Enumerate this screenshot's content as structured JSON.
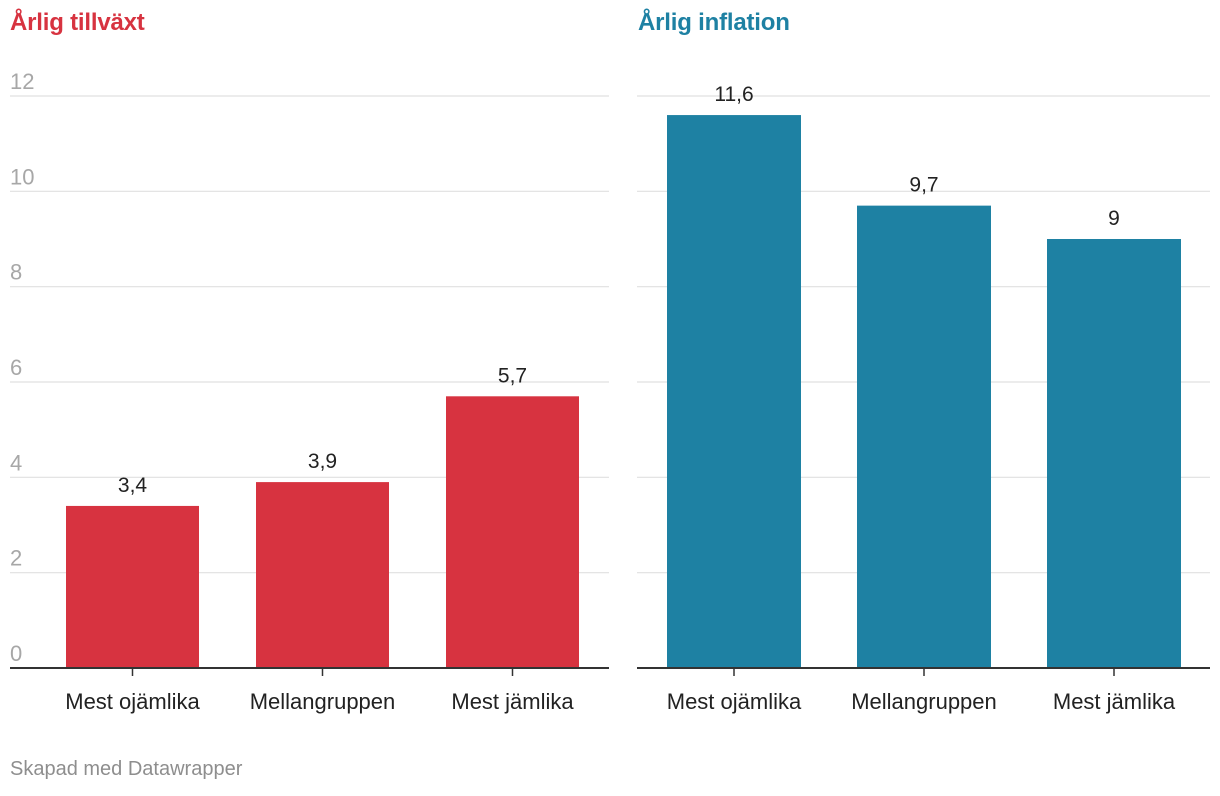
{
  "chart_data": [
    {
      "type": "bar",
      "title": "Årlig tillväxt",
      "color": "#d73340",
      "categories": [
        "Mest ojämlika",
        "Mellangruppen",
        "Mest jämlika"
      ],
      "values": [
        3.4,
        3.9,
        5.7
      ],
      "value_labels": [
        "3,4",
        "3,9",
        "5,7"
      ],
      "ylim": [
        0,
        12
      ],
      "yticks": [
        0,
        2,
        4,
        6,
        8,
        10,
        12
      ],
      "ytick_labels": [
        "0",
        "2",
        "4",
        "6",
        "8",
        "10",
        "12"
      ],
      "show_ytick_labels": true,
      "grid": true
    },
    {
      "type": "bar",
      "title": "Årlig inflation",
      "color": "#1e81a3",
      "categories": [
        "Mest ojämlika",
        "Mellangruppen",
        "Mest jämlika"
      ],
      "values": [
        11.6,
        9.7,
        9
      ],
      "value_labels": [
        "11,6",
        "9,7",
        "9"
      ],
      "ylim": [
        0,
        12
      ],
      "yticks": [
        0,
        2,
        4,
        6,
        8,
        10,
        12
      ],
      "ytick_labels": [
        "",
        "",
        "",
        "",
        "",
        "",
        ""
      ],
      "show_ytick_labels": false,
      "grid": true
    }
  ],
  "footer": "Skapad med Datawrapper"
}
